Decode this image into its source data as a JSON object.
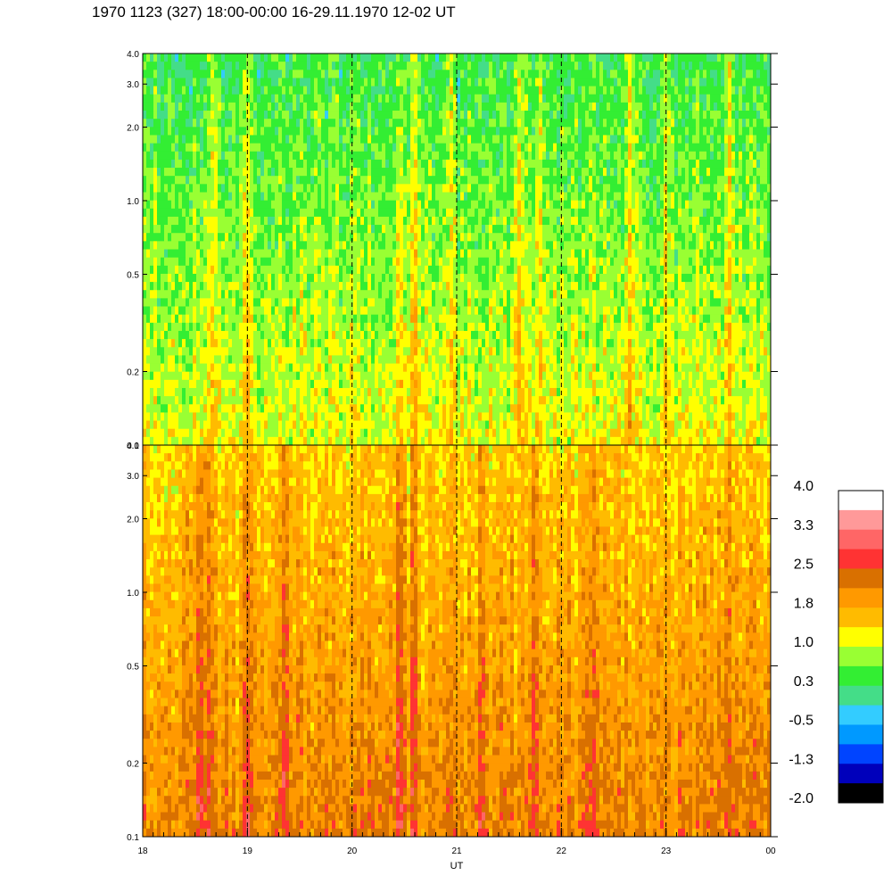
{
  "title": "1970 1123 (327) 18:00-00:00 16-29.11.1970  12-02 UT",
  "chart_data": {
    "type": "heatmap",
    "xlabel": "UT",
    "x_ticks": [
      "18",
      "19",
      "20",
      "21",
      "22",
      "23",
      "00"
    ],
    "x_tick_values": [
      18,
      19,
      20,
      21,
      22,
      23,
      24
    ],
    "xlim": [
      18,
      24
    ],
    "vertical_dashed_lines_at": [
      19,
      20,
      21,
      22,
      23
    ],
    "y_scale": "log",
    "y_ticks": [
      "4.0",
      "3.0",
      "2.0",
      "1.0",
      "0.5",
      "0.2",
      "0.1"
    ],
    "y_tick_values": [
      4.0,
      3.0,
      2.0,
      1.0,
      0.5,
      0.2,
      0.1
    ],
    "ylim": [
      0.1,
      4.0
    ],
    "panels": [
      {
        "name": "upper",
        "dominant_levels": [
          0.3,
          0.8,
          1.2
        ],
        "low_freq_level": 1.3,
        "high_freq_level": 0.2,
        "event_hours": [
          18.65,
          19.0,
          20.45,
          20.6,
          20.95,
          21.6,
          21.8,
          22.65,
          23.0,
          23.6
        ]
      },
      {
        "name": "lower",
        "dominant_levels": [
          1.6,
          2.0,
          2.4
        ],
        "low_freq_level": 2.2,
        "high_freq_level": 1.2,
        "event_hours": [
          18.55,
          18.65,
          19.0,
          19.35,
          20.45,
          20.6,
          21.25,
          21.75,
          22.3,
          23.6
        ]
      }
    ],
    "colorbar": {
      "labels": [
        "4.0",
        "3.3",
        "2.5",
        "1.8",
        "1.0",
        "0.3",
        "-0.5",
        "-1.3",
        "-2.0"
      ],
      "range": [
        -2.0,
        4.0
      ],
      "colors_high_to_low": [
        "#ffffff",
        "#ff9999",
        "#ff6666",
        "#ff3333",
        "#d97000",
        "#ff9900",
        "#ffbb00",
        "#ffff00",
        "#99ff33",
        "#33ee33",
        "#44dd88",
        "#33ccff",
        "#0099ff",
        "#0044ff",
        "#0000bb",
        "#000000"
      ]
    }
  }
}
